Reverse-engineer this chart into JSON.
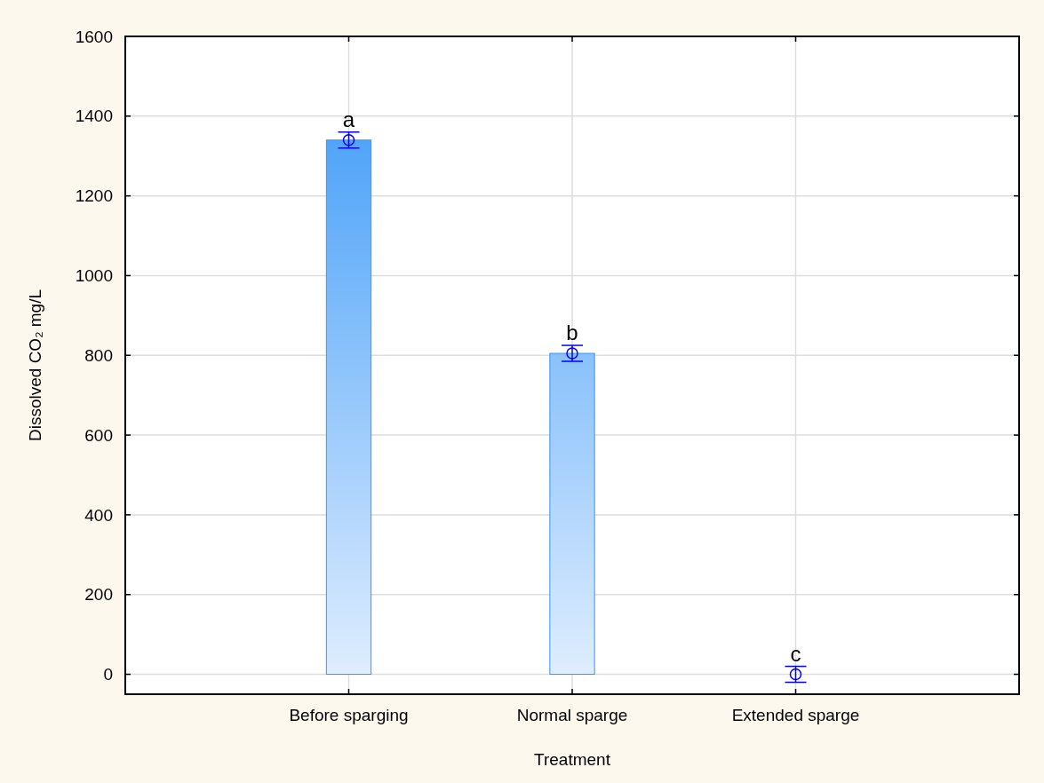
{
  "chart_data": {
    "type": "bar",
    "xlabel": "Treatment",
    "ylabel": "Dissolved CO₂ mg/L",
    "categories": [
      "Before sparging",
      "Normal sparge",
      "Extended sparge"
    ],
    "series": [
      {
        "color": "#3596f7",
        "values": [
          1340,
          805,
          0
        ]
      },
      {
        "type": "scatter",
        "color": "#0000ff",
        "x": [
          "Before sparging",
          "Normal sparge",
          "Extended sparge"
        ],
        "values": [
          1340,
          805,
          0
        ],
        "errors": [
          20,
          20,
          20
        ],
        "marker": "circle"
      }
    ],
    "annotations": [
      {
        "text": "a",
        "x": "Before sparging",
        "y": 1340
      },
      {
        "text": "b",
        "x": "Normal sparge",
        "y": 805
      },
      {
        "text": "c",
        "x": "Extended sparge",
        "y": 0
      }
    ],
    "ylim": [
      -50,
      1600
    ],
    "yticks": [
      0,
      200,
      400,
      600,
      800,
      1000,
      1200,
      1400,
      1600
    ],
    "grid": true
  }
}
